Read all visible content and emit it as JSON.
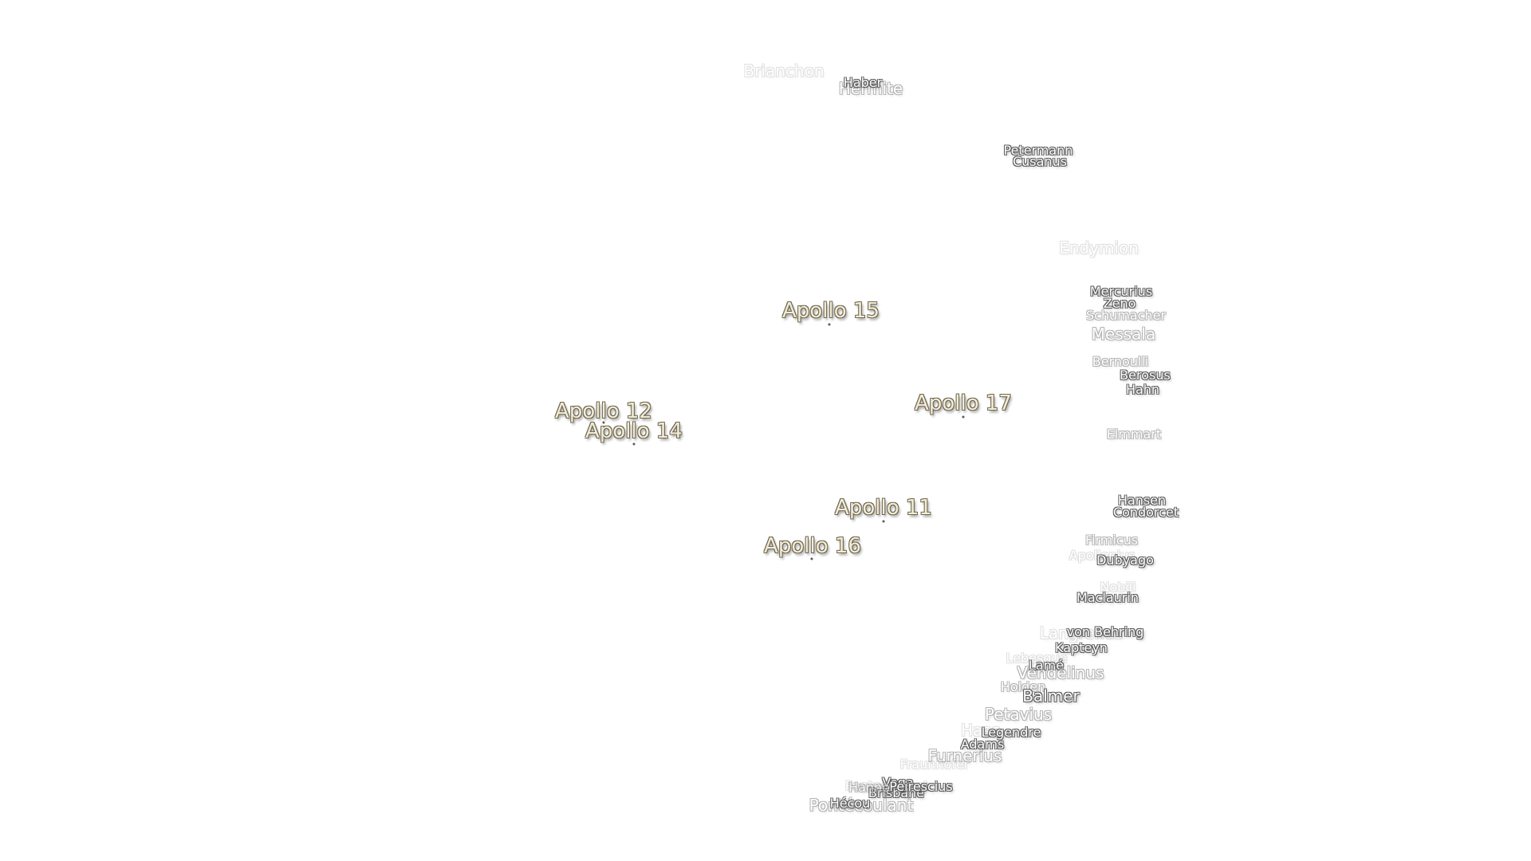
{
  "apollo_sites": [
    {
      "name": "Apollo 15"
    },
    {
      "name": "Apollo 12"
    },
    {
      "name": "Apollo 14"
    },
    {
      "name": "Apollo 17"
    },
    {
      "name": "Apollo 11"
    },
    {
      "name": "Apollo 16"
    }
  ],
  "craters": [
    {
      "name": "Brianchon"
    },
    {
      "name": "Hermite"
    },
    {
      "name": "Haber"
    },
    {
      "name": "Petermann"
    },
    {
      "name": "Cusanus"
    },
    {
      "name": "Endymion"
    },
    {
      "name": "Mercurius"
    },
    {
      "name": "Zeno"
    },
    {
      "name": "Schumacher"
    },
    {
      "name": "Messala"
    },
    {
      "name": "Bernoulli"
    },
    {
      "name": "Berosus"
    },
    {
      "name": "Hahn"
    },
    {
      "name": "Elmmart"
    },
    {
      "name": "Hansen"
    },
    {
      "name": "Condorcet"
    },
    {
      "name": "Firmicus"
    },
    {
      "name": "Apollonius"
    },
    {
      "name": "Dubyago"
    },
    {
      "name": "Nobili"
    },
    {
      "name": "Maclaurin"
    },
    {
      "name": "Langrenus"
    },
    {
      "name": "von Behring"
    },
    {
      "name": "Kapteyn"
    },
    {
      "name": "Lebesgue"
    },
    {
      "name": "Lamé"
    },
    {
      "name": "Vendelinus"
    },
    {
      "name": "Holden"
    },
    {
      "name": "Balmer"
    },
    {
      "name": "Petavius"
    },
    {
      "name": "Hase"
    },
    {
      "name": "Legendre"
    },
    {
      "name": "Adams"
    },
    {
      "name": "Furnerius"
    },
    {
      "name": "Fraunhofer"
    },
    {
      "name": "Vega"
    },
    {
      "name": "Pontecoulant"
    },
    {
      "name": "Brisbane"
    },
    {
      "name": "Peirescius"
    },
    {
      "name": "Hanno"
    },
    {
      "name": "Pontécoulant"
    },
    {
      "name": "Hécou"
    }
  ]
}
